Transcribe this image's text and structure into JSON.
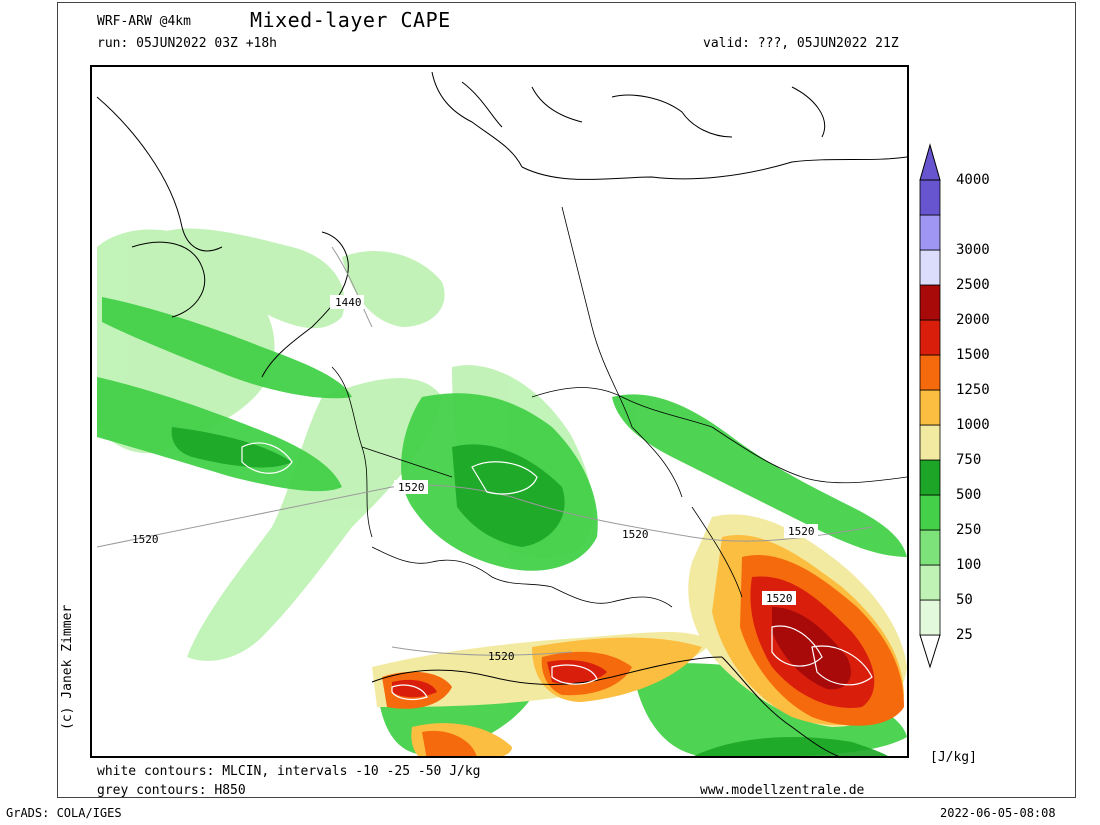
{
  "header": {
    "model": "WRF-ARW @4km",
    "title": "Mixed-layer CAPE",
    "run": "run: 05JUN2022 03Z +18h",
    "valid": "valid: ???, 05JUN2022 21Z"
  },
  "legend": {
    "unit": "[J/kg]",
    "levels": [
      {
        "label": "25",
        "color": "#e3f9dc"
      },
      {
        "label": "50",
        "color": "#bff2b4"
      },
      {
        "label": "100",
        "color": "#7ee27a"
      },
      {
        "label": "250",
        "color": "#44d149"
      },
      {
        "label": "500",
        "color": "#1ca526"
      },
      {
        "label": "750",
        "color": "#f3eaa1"
      },
      {
        "label": "1000",
        "color": "#fbbe41"
      },
      {
        "label": "1250",
        "color": "#f56a0c"
      },
      {
        "label": "1500",
        "color": "#d91e0c"
      },
      {
        "label": "2000",
        "color": "#a80a0a"
      },
      {
        "label": "2500",
        "color": "#dcdcfc"
      },
      {
        "label": "3000",
        "color": "#9f96f4"
      },
      {
        "label": "4000",
        "color": "#6655cf"
      }
    ]
  },
  "map": {
    "contour_labels": [
      "1440",
      "1520",
      "1520",
      "1520",
      "1520",
      "1520",
      "1520"
    ]
  },
  "footer": {
    "line1": "white contours: MLCIN, intervals -10 -25 -50 J/kg",
    "line2": "grey contours: H850",
    "website": "www.modellzentrale.de",
    "credit": "(c) Janek Zimmer",
    "grads": "GrADS: COLA/IGES",
    "timestamp": "2022-06-05-08:08"
  },
  "colors": {
    "green_light": "#bff2b4",
    "green_mid": "#44d149",
    "green_dark": "#1ca526",
    "yellow": "#f3eaa1",
    "orange": "#fbbe41",
    "orange_dark": "#f56a0c",
    "red": "#d91e0c",
    "red_dark": "#a80a0a"
  }
}
